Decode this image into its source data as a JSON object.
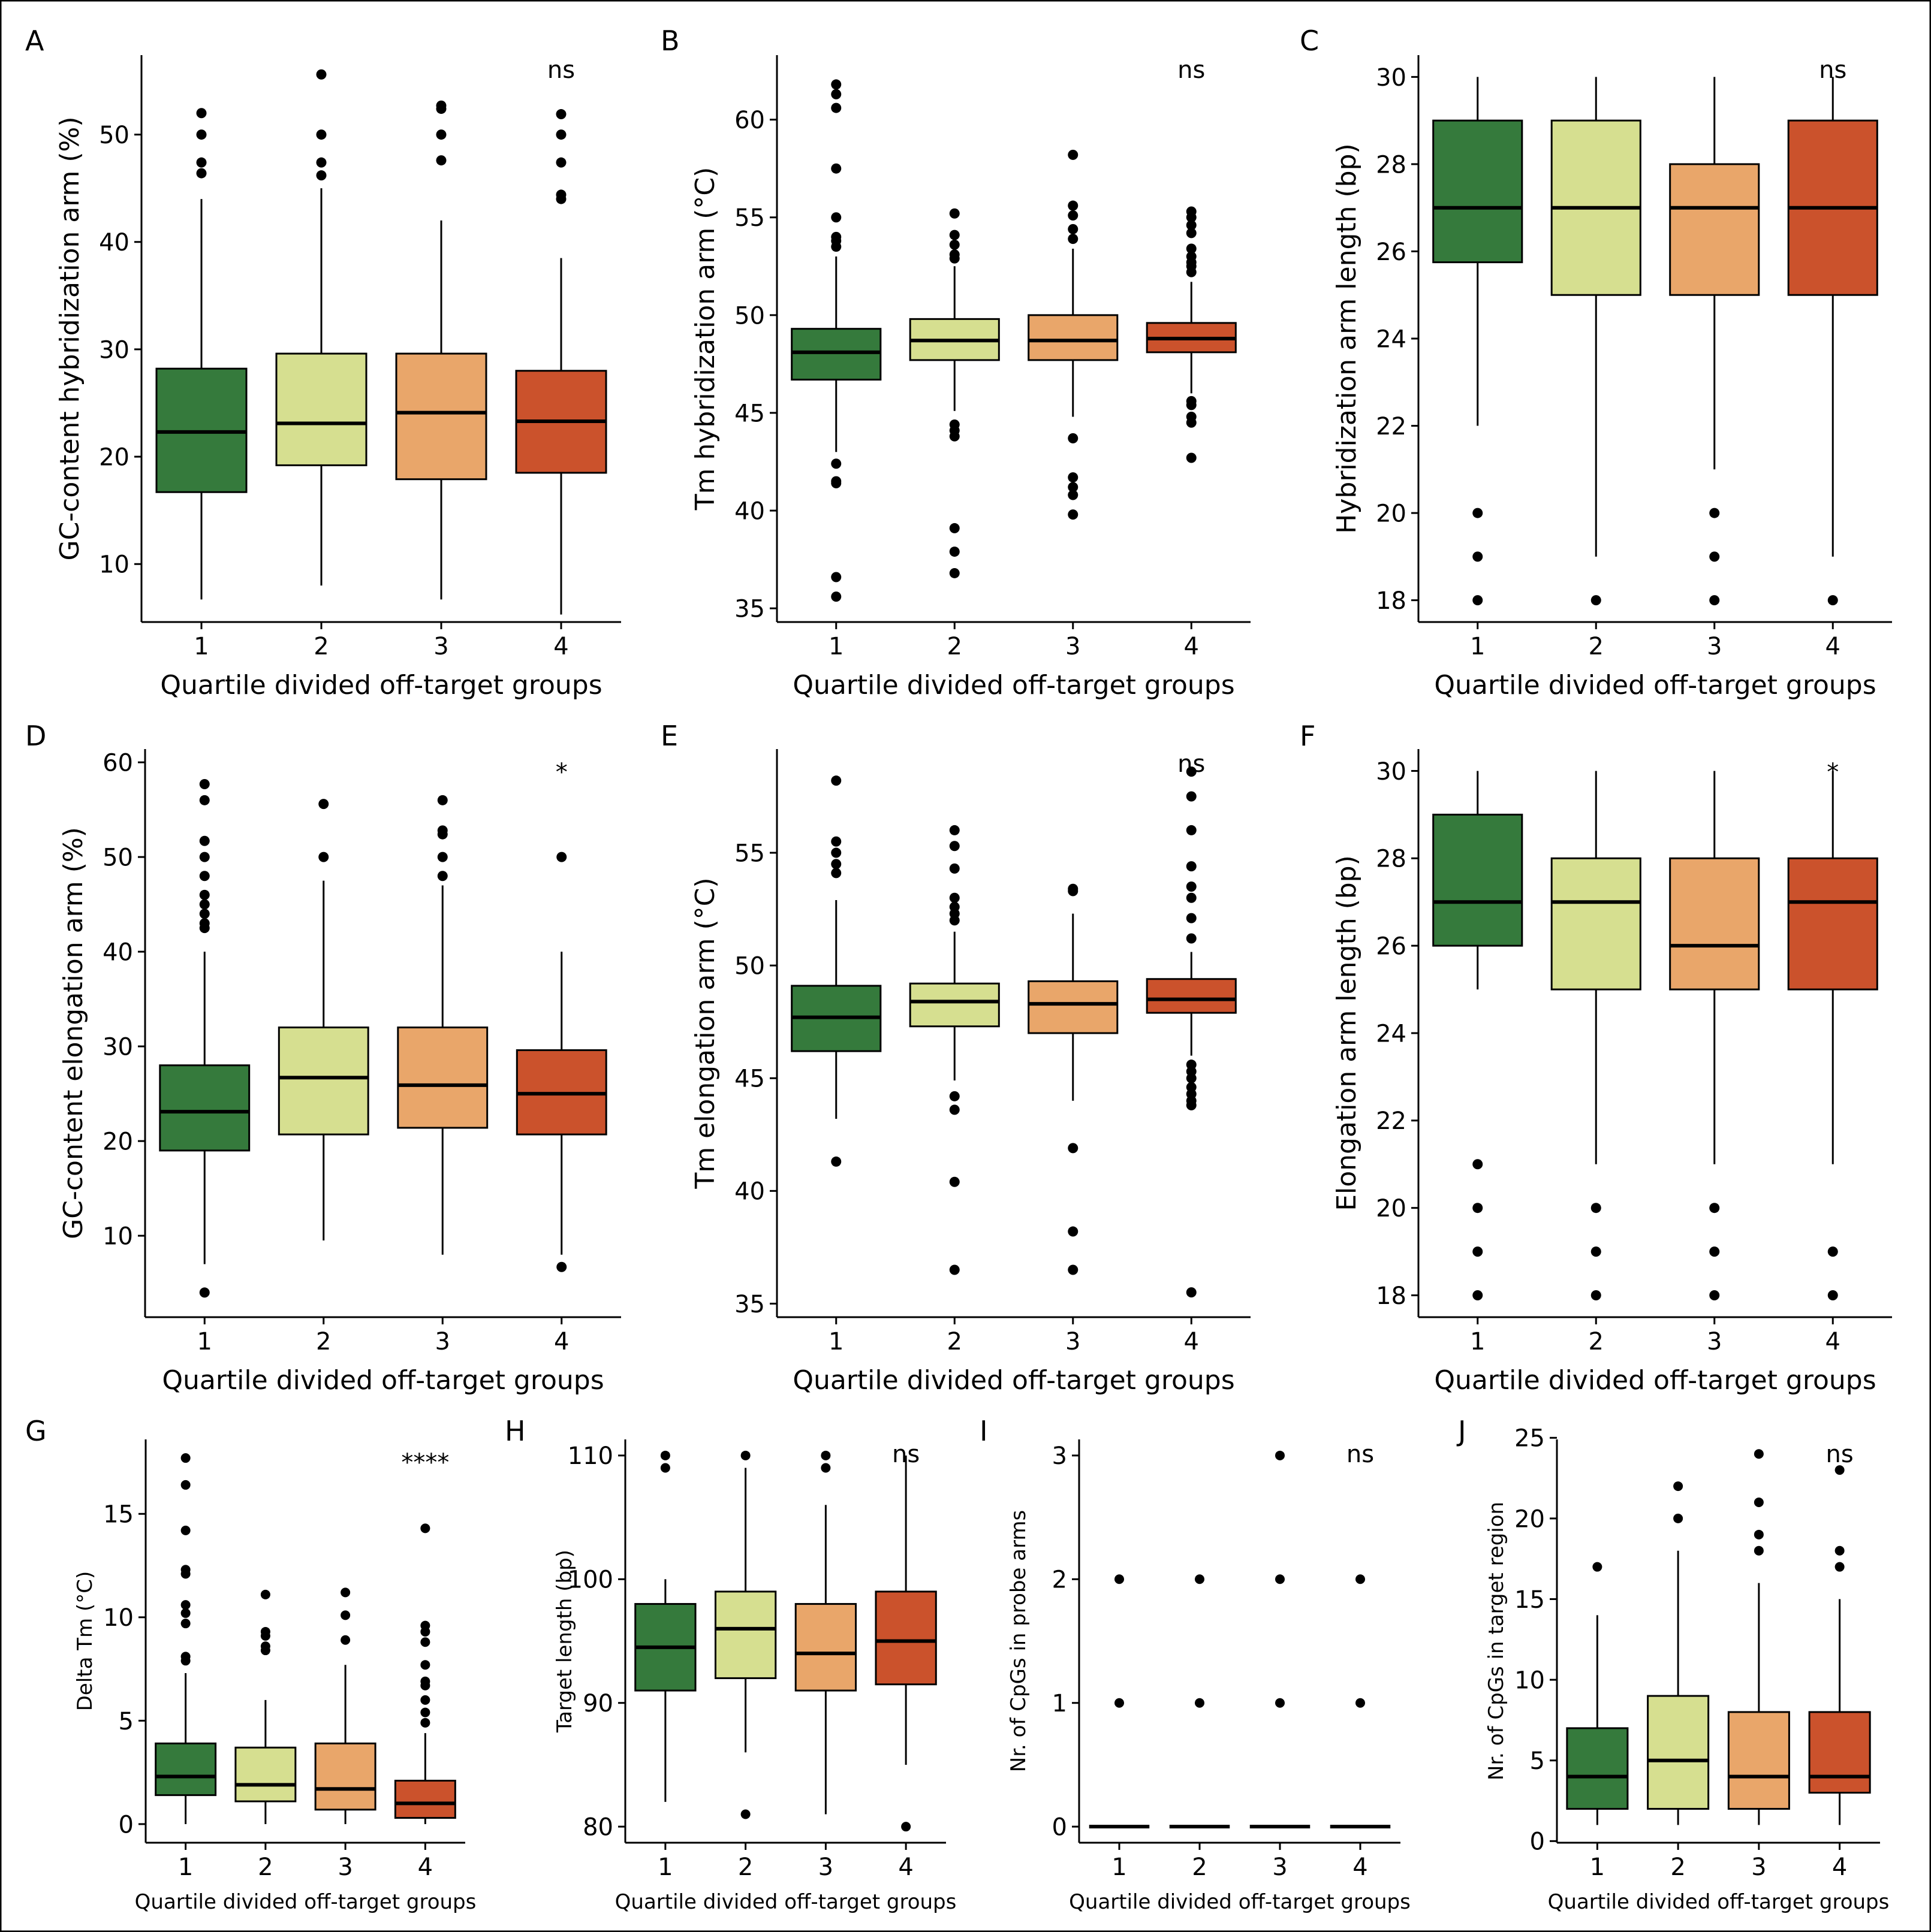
{
  "figure": {
    "colors": {
      "group1": "#357a3c",
      "group2": "#d6df90",
      "group3": "#e9a66a",
      "group4": "#cb522c"
    },
    "groups": [
      "1",
      "2",
      "3",
      "4"
    ]
  },
  "chart_data": [
    {
      "panel": "A",
      "type": "boxplot",
      "xlabel": "Quartile divided off-target groups",
      "ylabel": "GC-content hybridization arm (%)",
      "ylim": [
        4.6,
        57.4
      ],
      "yticks": [
        10,
        20,
        30,
        40,
        50
      ],
      "significance": "ns",
      "categories": [
        "1",
        "2",
        "3",
        "4"
      ],
      "boxes": [
        {
          "q1": 16.7,
          "median": 22.3,
          "q3": 28.2,
          "whisker_low": 6.7,
          "whisker_high": 44.0,
          "outliers": [
            46.4,
            47.4,
            50.0,
            52.0
          ]
        },
        {
          "q1": 19.2,
          "median": 23.1,
          "q3": 29.6,
          "whisker_low": 8.0,
          "whisker_high": 45.0,
          "outliers": [
            46.2,
            47.4,
            50.0,
            55.6
          ]
        },
        {
          "q1": 17.9,
          "median": 24.1,
          "q3": 29.6,
          "whisker_low": 6.7,
          "whisker_high": 42.0,
          "outliers": [
            47.6,
            50.0,
            52.4,
            52.7
          ]
        },
        {
          "q1": 18.5,
          "median": 23.3,
          "q3": 28.0,
          "whisker_low": 5.3,
          "whisker_high": 38.5,
          "outliers": [
            44.0,
            44.4,
            47.4,
            50.0,
            51.9
          ]
        }
      ]
    },
    {
      "panel": "B",
      "type": "boxplot",
      "xlabel": "Quartile divided off-target groups",
      "ylabel": "Tm hybridization arm (°C)",
      "ylim": [
        34.3,
        63.3
      ],
      "yticks": [
        35,
        40,
        45,
        50,
        55,
        60
      ],
      "significance": "ns",
      "categories": [
        "1",
        "2",
        "3",
        "4"
      ],
      "boxes": [
        {
          "q1": 46.7,
          "median": 48.1,
          "q3": 49.3,
          "whisker_low": 43.0,
          "whisker_high": 53.0,
          "outliers": [
            35.6,
            36.6,
            41.4,
            41.5,
            42.4,
            53.5,
            53.8,
            54.0,
            55.0,
            57.5,
            60.6,
            61.3,
            61.8
          ]
        },
        {
          "q1": 47.7,
          "median": 48.7,
          "q3": 49.8,
          "whisker_low": 45.1,
          "whisker_high": 52.5,
          "outliers": [
            36.8,
            37.9,
            39.1,
            43.8,
            44.1,
            44.4,
            52.9,
            53.1,
            53.6,
            54.1,
            55.2
          ]
        },
        {
          "q1": 47.7,
          "median": 48.7,
          "q3": 50.0,
          "whisker_low": 44.8,
          "whisker_high": 53.4,
          "outliers": [
            39.8,
            40.8,
            41.2,
            41.7,
            43.7,
            53.9,
            54.4,
            55.1,
            55.6,
            58.2
          ]
        },
        {
          "q1": 48.1,
          "median": 48.8,
          "q3": 49.6,
          "whisker_low": 46.0,
          "whisker_high": 51.7,
          "outliers": [
            42.7,
            44.5,
            44.8,
            45.4,
            45.6,
            52.2,
            52.5,
            52.7,
            53.0,
            53.4,
            54.2,
            54.6,
            55.0,
            55.3
          ]
        }
      ]
    },
    {
      "panel": "C",
      "type": "boxplot",
      "xlabel": "Quartile divided off-target groups",
      "ylabel": "Hybridization arm length (bp)",
      "ylim": [
        17.5,
        30.5
      ],
      "yticks": [
        18,
        20,
        22,
        24,
        26,
        28,
        30
      ],
      "significance": "ns",
      "categories": [
        "1",
        "2",
        "3",
        "4"
      ],
      "boxes": [
        {
          "q1": 25.75,
          "median": 27,
          "q3": 29,
          "whisker_low": 22,
          "whisker_high": 30,
          "outliers": [
            18,
            19,
            20
          ]
        },
        {
          "q1": 25,
          "median": 27,
          "q3": 29,
          "whisker_low": 19,
          "whisker_high": 30,
          "outliers": [
            18
          ]
        },
        {
          "q1": 25,
          "median": 27,
          "q3": 28,
          "whisker_low": 21,
          "whisker_high": 30,
          "outliers": [
            18,
            19,
            20
          ]
        },
        {
          "q1": 25,
          "median": 27,
          "q3": 29,
          "whisker_low": 19,
          "whisker_high": 30,
          "outliers": [
            18
          ]
        }
      ]
    },
    {
      "panel": "D",
      "type": "boxplot",
      "xlabel": "Quartile divided off-target groups",
      "ylabel": "GC-content elongation arm (%)",
      "ylim": [
        1.4,
        61.4
      ],
      "yticks": [
        10,
        20,
        30,
        40,
        50,
        60
      ],
      "significance": "*",
      "categories": [
        "1",
        "2",
        "3",
        "4"
      ],
      "boxes": [
        {
          "q1": 19.0,
          "median": 23.1,
          "q3": 28.0,
          "whisker_low": 7.0,
          "whisker_high": 40.0,
          "outliers": [
            4.0,
            42.5,
            43.0,
            44.0,
            45.0,
            46.0,
            48.0,
            50.0,
            51.7,
            56.0,
            57.7
          ]
        },
        {
          "q1": 20.7,
          "median": 26.7,
          "q3": 32.0,
          "whisker_low": 9.5,
          "whisker_high": 47.5,
          "outliers": [
            50.0,
            55.6
          ]
        },
        {
          "q1": 21.4,
          "median": 25.9,
          "q3": 32.0,
          "whisker_low": 8.0,
          "whisker_high": 47.0,
          "outliers": [
            48.0,
            50.0,
            52.4,
            52.8,
            56.0
          ]
        },
        {
          "q1": 20.7,
          "median": 25.0,
          "q3": 29.6,
          "whisker_low": 8.0,
          "whisker_high": 40.0,
          "outliers": [
            6.7,
            50.0
          ]
        }
      ]
    },
    {
      "panel": "E",
      "type": "boxplot",
      "xlabel": "Quartile divided off-target groups",
      "ylabel": "Tm elongation arm (°C)",
      "ylim": [
        34.4,
        59.6
      ],
      "yticks": [
        35,
        40,
        45,
        50,
        55
      ],
      "significance": "ns",
      "categories": [
        "1",
        "2",
        "3",
        "4"
      ],
      "boxes": [
        {
          "q1": 46.2,
          "median": 47.7,
          "q3": 49.1,
          "whisker_low": 43.2,
          "whisker_high": 52.9,
          "outliers": [
            41.3,
            54.1,
            54.5,
            55.0,
            55.5,
            58.2
          ]
        },
        {
          "q1": 47.3,
          "median": 48.4,
          "q3": 49.2,
          "whisker_low": 44.9,
          "whisker_high": 51.5,
          "outliers": [
            36.5,
            40.4,
            43.6,
            44.2,
            52.0,
            52.3,
            52.6,
            53.0,
            54.3,
            55.3,
            56.0
          ]
        },
        {
          "q1": 47.0,
          "median": 48.3,
          "q3": 49.3,
          "whisker_low": 44.0,
          "whisker_high": 52.3,
          "outliers": [
            36.5,
            38.2,
            41.9,
            53.3,
            53.4
          ]
        },
        {
          "q1": 47.9,
          "median": 48.5,
          "q3": 49.4,
          "whisker_low": 46.0,
          "whisker_high": 50.6,
          "outliers": [
            35.5,
            43.8,
            44.0,
            44.3,
            44.6,
            45.0,
            45.3,
            45.6,
            51.2,
            52.1,
            53.0,
            53.5,
            54.4,
            56.0,
            57.5,
            58.6
          ]
        }
      ]
    },
    {
      "panel": "F",
      "type": "boxplot",
      "xlabel": "Quartile divided off-target groups",
      "ylabel": "Elongation arm length (bp)",
      "ylim": [
        17.5,
        30.5
      ],
      "yticks": [
        18,
        20,
        22,
        24,
        26,
        28,
        30
      ],
      "significance": "*",
      "categories": [
        "1",
        "2",
        "3",
        "4"
      ],
      "boxes": [
        {
          "q1": 26,
          "median": 27,
          "q3": 29,
          "whisker_low": 25,
          "whisker_high": 30,
          "outliers": [
            18,
            19,
            20,
            21
          ]
        },
        {
          "q1": 25,
          "median": 27,
          "q3": 28,
          "whisker_low": 21,
          "whisker_high": 30,
          "outliers": [
            18,
            19,
            20
          ]
        },
        {
          "q1": 25,
          "median": 26,
          "q3": 28,
          "whisker_low": 21,
          "whisker_high": 30,
          "outliers": [
            18,
            19,
            20
          ]
        },
        {
          "q1": 25,
          "median": 27,
          "q3": 28,
          "whisker_low": 21,
          "whisker_high": 30,
          "outliers": [
            18,
            19
          ]
        }
      ]
    },
    {
      "panel": "G",
      "type": "boxplot",
      "xlabel": "Quartile divided off-target groups",
      "ylabel": "Delta Tm (°C)",
      "ylim": [
        -0.9,
        18.6
      ],
      "yticks": [
        0,
        5,
        10,
        15
      ],
      "significance": "****",
      "categories": [
        "1",
        "2",
        "3",
        "4"
      ],
      "boxes": [
        {
          "q1": 1.4,
          "median": 2.3,
          "q3": 3.9,
          "whisker_low": 0.0,
          "whisker_high": 7.3,
          "outliers": [
            7.9,
            8.1,
            9.7,
            10.2,
            10.6,
            12.1,
            12.3,
            14.2,
            16.4,
            17.7
          ]
        },
        {
          "q1": 1.1,
          "median": 1.9,
          "q3": 3.7,
          "whisker_low": 0.0,
          "whisker_high": 6.0,
          "outliers": [
            8.4,
            8.6,
            9.1,
            9.3,
            11.1
          ]
        },
        {
          "q1": 0.7,
          "median": 1.7,
          "q3": 3.9,
          "whisker_low": 0.0,
          "whisker_high": 7.7,
          "outliers": [
            8.9,
            10.1,
            11.2
          ]
        },
        {
          "q1": 0.3,
          "median": 1.0,
          "q3": 2.1,
          "whisker_low": 0.0,
          "whisker_high": 4.4,
          "outliers": [
            4.9,
            5.4,
            6.0,
            6.7,
            6.9,
            7.7,
            8.8,
            9.3,
            9.6,
            14.3
          ]
        }
      ]
    },
    {
      "panel": "H",
      "type": "boxplot",
      "xlabel": "Quartile divided off-target groups",
      "ylabel": "Target length (bp)",
      "ylim": [
        78.7,
        111.3
      ],
      "yticks": [
        80,
        90,
        100,
        110
      ],
      "significance": "ns",
      "categories": [
        "1",
        "2",
        "3",
        "4"
      ],
      "boxes": [
        {
          "q1": 91,
          "median": 94.5,
          "q3": 98,
          "whisker_low": 82,
          "whisker_high": 100,
          "outliers": [
            109,
            110
          ]
        },
        {
          "q1": 92,
          "median": 96,
          "q3": 99,
          "whisker_low": 86,
          "whisker_high": 109,
          "outliers": [
            81,
            110
          ]
        },
        {
          "q1": 91,
          "median": 94,
          "q3": 98,
          "whisker_low": 81,
          "whisker_high": 106,
          "outliers": [
            109,
            110
          ]
        },
        {
          "q1": 91.5,
          "median": 95,
          "q3": 99,
          "whisker_low": 85,
          "whisker_high": 110,
          "outliers": [
            80
          ]
        }
      ]
    },
    {
      "panel": "I",
      "type": "boxplot",
      "xlabel": "Quartile divided off-target groups",
      "ylabel": "Nr. of CpGs in probe arms",
      "ylim": [
        -0.13,
        3.13
      ],
      "yticks": [
        0,
        1,
        2,
        3
      ],
      "significance": "ns",
      "categories": [
        "1",
        "2",
        "3",
        "4"
      ],
      "boxes": [
        {
          "q1": 0,
          "median": 0,
          "q3": 0,
          "whisker_low": 0,
          "whisker_high": 0,
          "outliers": [
            1,
            2
          ]
        },
        {
          "q1": 0,
          "median": 0,
          "q3": 0,
          "whisker_low": 0,
          "whisker_high": 0,
          "outliers": [
            1,
            2
          ]
        },
        {
          "q1": 0,
          "median": 0,
          "q3": 0,
          "whisker_low": 0,
          "whisker_high": 0,
          "outliers": [
            1,
            2,
            3
          ]
        },
        {
          "q1": 0,
          "median": 0,
          "q3": 0,
          "whisker_low": 0,
          "whisker_high": 0,
          "outliers": [
            1,
            2
          ]
        }
      ]
    },
    {
      "panel": "J",
      "type": "boxplot",
      "xlabel": "Quartile divided off-target groups",
      "ylabel": "Nr. of CpGs in target region",
      "ylim": [
        -0.1,
        24.9
      ],
      "yticks": [
        0,
        5,
        10,
        15,
        20,
        25
      ],
      "significance": "ns",
      "categories": [
        "1",
        "2",
        "3",
        "4"
      ],
      "boxes": [
        {
          "q1": 2,
          "median": 4,
          "q3": 7,
          "whisker_low": 1,
          "whisker_high": 14,
          "outliers": [
            17
          ]
        },
        {
          "q1": 2,
          "median": 5,
          "q3": 9,
          "whisker_low": 1,
          "whisker_high": 18,
          "outliers": [
            20,
            22
          ]
        },
        {
          "q1": 2,
          "median": 4,
          "q3": 8,
          "whisker_low": 1,
          "whisker_high": 16,
          "outliers": [
            18,
            19,
            21,
            24
          ]
        },
        {
          "q1": 3,
          "median": 4,
          "q3": 8,
          "whisker_low": 1,
          "whisker_high": 15,
          "outliers": [
            17,
            18,
            23
          ]
        }
      ]
    }
  ]
}
